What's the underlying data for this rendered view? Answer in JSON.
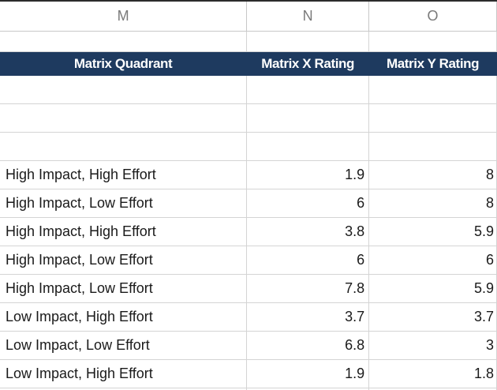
{
  "columns": [
    "M",
    "N",
    "O"
  ],
  "table_header": {
    "quadrant": "Matrix Quadrant",
    "x_rating": "Matrix X Rating",
    "y_rating": "Matrix Y Rating"
  },
  "rows": [
    {
      "quadrant": "High Impact, High Effort",
      "x": "1.9",
      "y": "8"
    },
    {
      "quadrant": "High Impact, Low Effort",
      "x": "6",
      "y": "8"
    },
    {
      "quadrant": "High Impact, High Effort",
      "x": "3.8",
      "y": "5.9"
    },
    {
      "quadrant": "High Impact, Low Effort",
      "x": "6",
      "y": "6"
    },
    {
      "quadrant": "High Impact, Low Effort",
      "x": "7.8",
      "y": "5.9"
    },
    {
      "quadrant": "Low Impact, High Effort",
      "x": "3.7",
      "y": "3.7"
    },
    {
      "quadrant": "Low Impact, Low Effort",
      "x": "6.8",
      "y": "3"
    },
    {
      "quadrant": "Low Impact, High Effort",
      "x": "1.9",
      "y": "1.8"
    }
  ]
}
